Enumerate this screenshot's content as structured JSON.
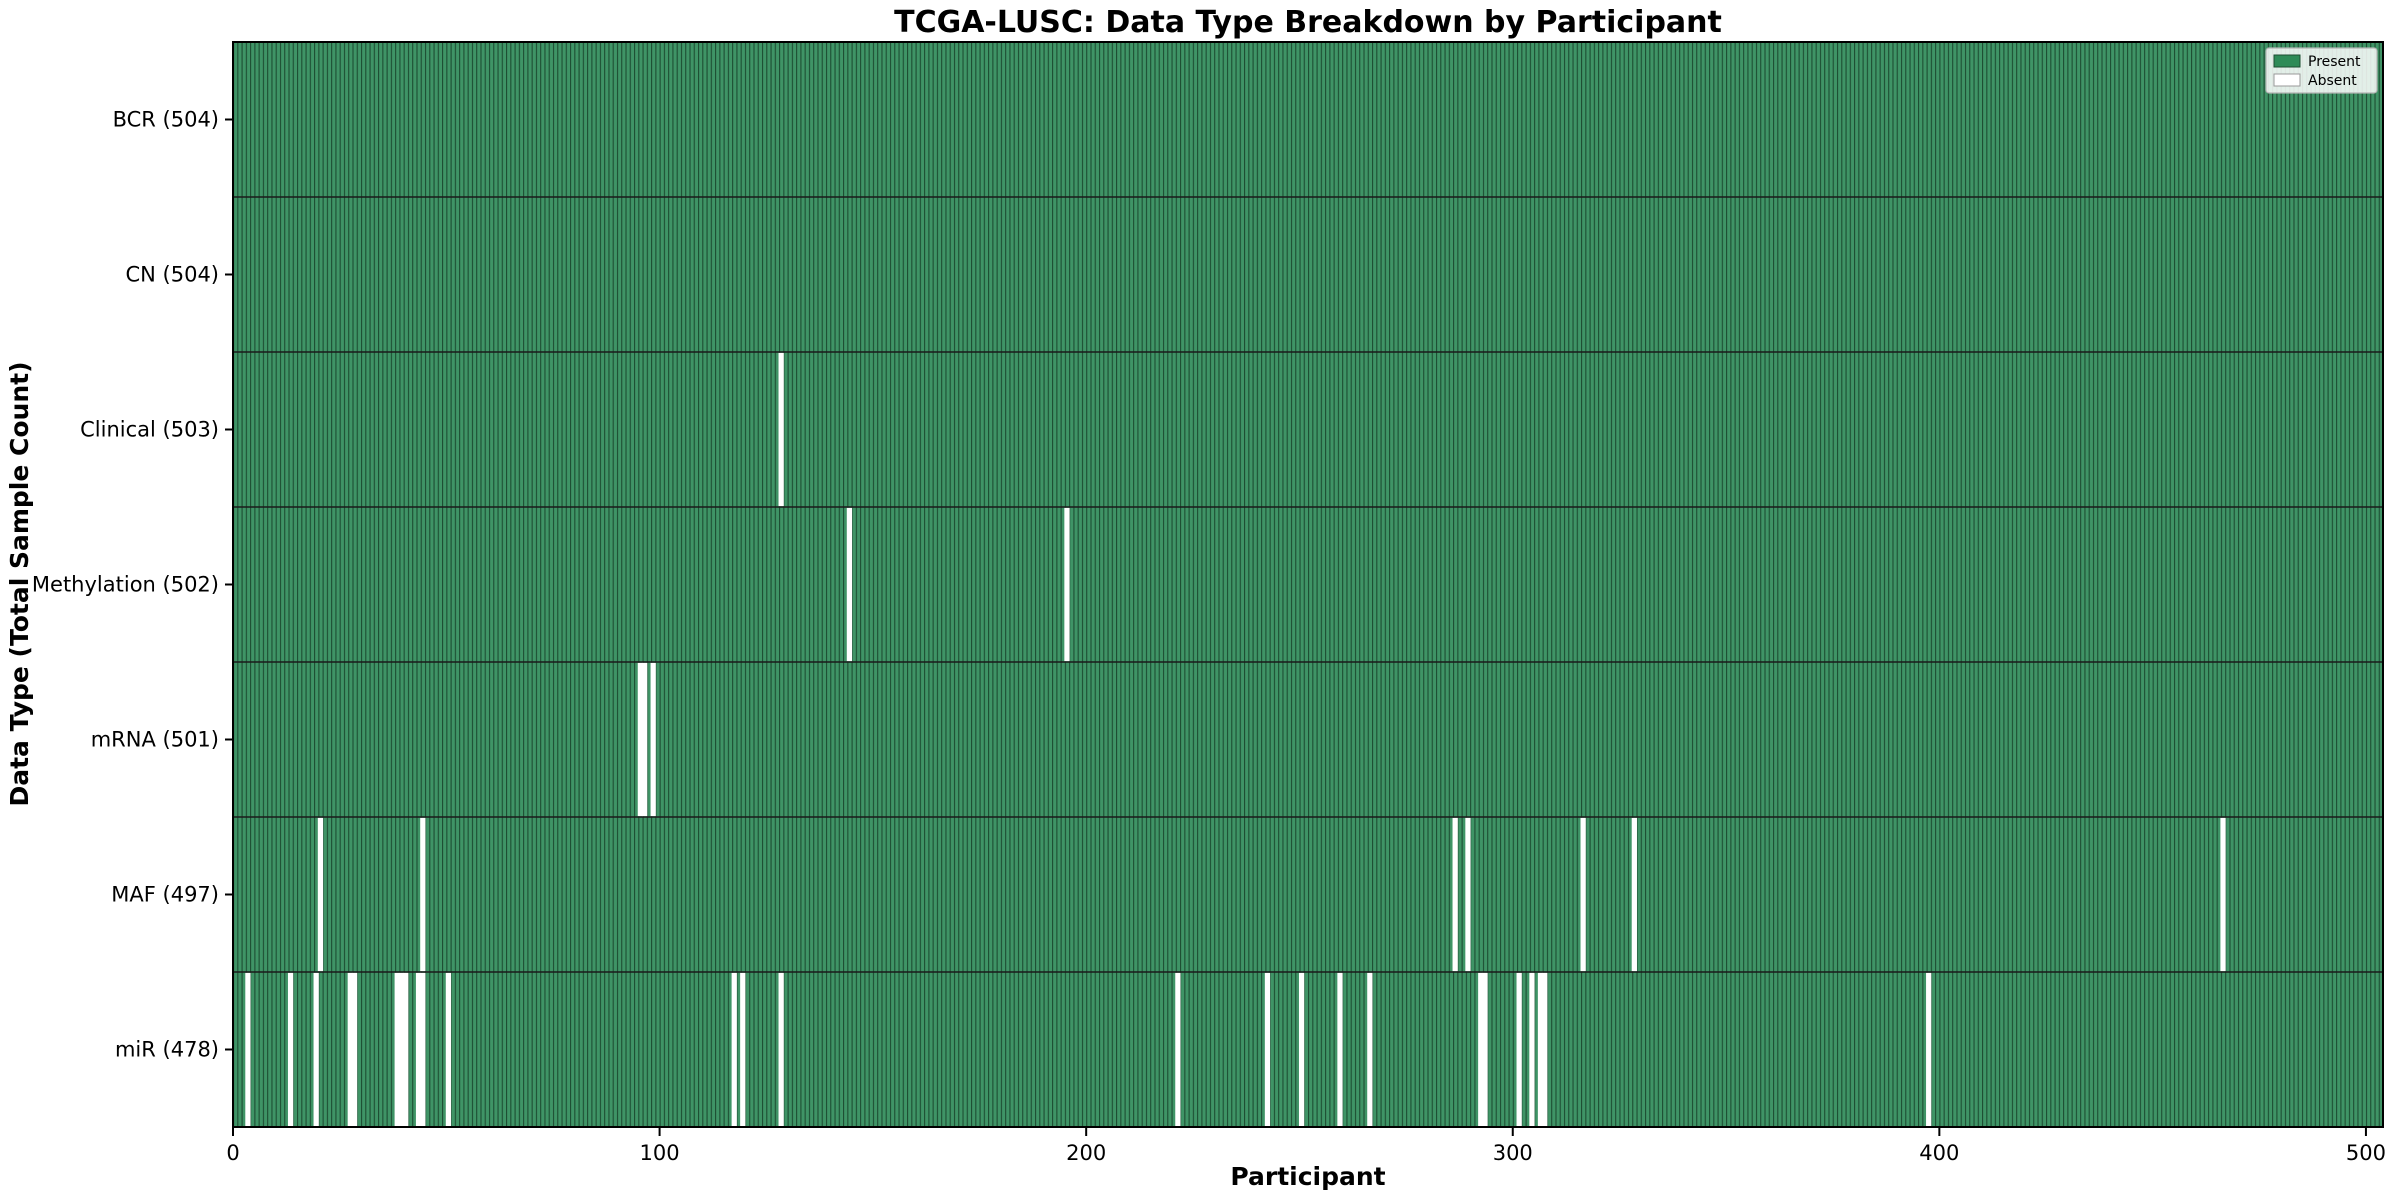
{
  "chart_data": {
    "type": "heatmap",
    "title": "TCGA-LUSC: Data Type Breakdown by Participant",
    "xlabel": "Participant",
    "ylabel": "Data Type (Total Sample Count)",
    "x_ticks": [
      0,
      100,
      200,
      300,
      400,
      500
    ],
    "xlim": [
      0,
      504
    ],
    "n_participants": 504,
    "grid": false,
    "rows": [
      {
        "name": "BCR",
        "label": "BCR (504)",
        "present_count": 504,
        "absent_participants": []
      },
      {
        "name": "CN",
        "label": "CN (504)",
        "present_count": 504,
        "absent_participants": []
      },
      {
        "name": "Clinical",
        "label": "Clinical (503)",
        "present_count": 503,
        "absent_participants": [
          128
        ]
      },
      {
        "name": "Methylation",
        "label": "Methylation (502)",
        "present_count": 502,
        "absent_participants": [
          144,
          195
        ]
      },
      {
        "name": "mRNA",
        "label": "mRNA (501)",
        "present_count": 501,
        "absent_participants": [
          95,
          96,
          98
        ]
      },
      {
        "name": "MAF",
        "label": "MAF (497)",
        "present_count": 497,
        "absent_participants": [
          20,
          44,
          286,
          289,
          316,
          328,
          466
        ]
      },
      {
        "name": "miR",
        "label": "miR (478)",
        "present_count": 478,
        "absent_participants": [
          3,
          13,
          19,
          27,
          28,
          38,
          39,
          40,
          43,
          44,
          50,
          117,
          119,
          128,
          221,
          242,
          250,
          259,
          266,
          292,
          293,
          301,
          304,
          306,
          307,
          397
        ]
      }
    ],
    "legend": {
      "position": "upper right",
      "entries": [
        {
          "label": "Present",
          "color": "#2e8b57"
        },
        {
          "label": "Absent",
          "color": "#ffffff"
        }
      ]
    },
    "colors": {
      "present": "#2e8b57",
      "present_fill": "#3f9466",
      "bar_edge": "#1d4d32",
      "absent": "#ffffff",
      "separator": "#1a1a1a",
      "spine": "#000000",
      "legend_bg": "rgba(255,255,255,0.85)",
      "legend_border": "#b3b3b3",
      "absent_swatch_border": "#999999"
    }
  }
}
